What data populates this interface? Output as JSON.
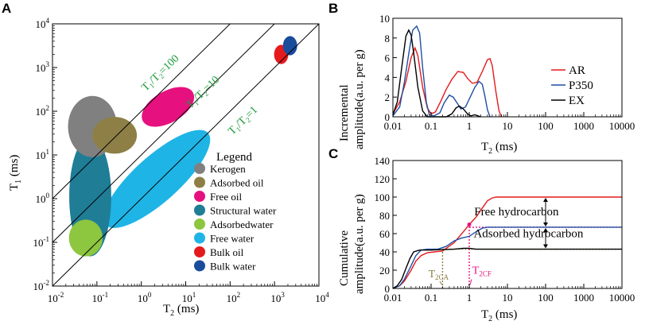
{
  "chart_data": [
    {
      "panel": "A",
      "type": "scatter",
      "xlabel_main": "T",
      "xlabel_sub": "2",
      "xlabel_unit": " (ms)",
      "ylabel_main": "T",
      "ylabel_sub": "1",
      "ylabel_unit": " (ms)",
      "xlim_log10": [
        -2,
        4
      ],
      "ylim_log10": [
        -2,
        4
      ],
      "x_ticks": [
        {
          "b": "10",
          "e": "-2",
          "p": -2
        },
        {
          "b": "10",
          "e": "-1",
          "p": -1
        },
        {
          "b": "10",
          "e": "0",
          "p": 0
        },
        {
          "b": "10",
          "e": "1",
          "p": 1
        },
        {
          "b": "10",
          "e": "2",
          "p": 2
        },
        {
          "b": "10",
          "e": "3",
          "p": 3
        },
        {
          "b": "10",
          "e": "4",
          "p": 4
        }
      ],
      "y_ticks": [
        {
          "b": "10",
          "e": "-2",
          "p": -2
        },
        {
          "b": "10",
          "e": "-1",
          "p": -1
        },
        {
          "b": "10",
          "e": "0",
          "p": 0
        },
        {
          "b": "10",
          "e": "1",
          "p": 1
        },
        {
          "b": "10",
          "e": "2",
          "p": 2
        },
        {
          "b": "10",
          "e": "3",
          "p": 3
        },
        {
          "b": "10",
          "e": "4",
          "p": 4
        }
      ],
      "ratio_lines": [
        {
          "ratio": 100,
          "label_a": "T",
          "label_s1": "1",
          "label_b": "/T",
          "label_s2": "2",
          "label_c": "=100",
          "lx": 0.1,
          "ly": 2.45
        },
        {
          "ratio": 10,
          "label_a": "T",
          "label_s1": "1",
          "label_b": "/T",
          "label_s2": "2",
          "label_c": "=10",
          "lx": 1.1,
          "ly": 2.05
        },
        {
          "ratio": 1,
          "label_a": "T",
          "label_s1": "1",
          "label_b": "/T",
          "label_s2": "2",
          "label_c": "=1",
          "lx": 2.05,
          "ly": 1.45
        }
      ],
      "regions": [
        {
          "name": "Free water",
          "color": "#1eb4e6",
          "cx": 0.35,
          "cy": 0.45,
          "rx": 1.55,
          "ry": 0.52,
          "rot": -42
        },
        {
          "name": "Structural water",
          "color": "#1f7d96",
          "cx": -1.15,
          "cy": 0.05,
          "rx": 1.35,
          "ry": 0.48,
          "rot": -90
        },
        {
          "name": "Adsorbedwater",
          "color": "#8dc63f",
          "cx": -1.25,
          "cy": -0.9,
          "rx": 0.38,
          "ry": 0.42,
          "rot": 0
        },
        {
          "name": "Kerogen",
          "color": "#808080",
          "cx": -1.1,
          "cy": 1.65,
          "rx": 0.55,
          "ry": 0.7,
          "rot": 0
        },
        {
          "name": "Adsorbed oil",
          "color": "#8d7f46",
          "cx": -0.6,
          "cy": 1.45,
          "rx": 0.5,
          "ry": 0.42,
          "rot": 0
        },
        {
          "name": "Free oil",
          "color": "#e6117e",
          "cx": 0.6,
          "cy": 2.1,
          "rx": 0.65,
          "ry": 0.36,
          "rot": -30
        },
        {
          "name": "Bulk oil",
          "color": "#e41a1c",
          "cx": 3.15,
          "cy": 3.3,
          "rx": 0.16,
          "ry": 0.22,
          "rot": 0
        },
        {
          "name": "Bulk water",
          "color": "#1a4c9c",
          "cx": 3.35,
          "cy": 3.5,
          "rx": 0.16,
          "ry": 0.22,
          "rot": 0
        }
      ],
      "legend_title": "Legend",
      "legend": [
        {
          "label": "Kerogen",
          "color": "#808080"
        },
        {
          "label": "Adsorbed oil",
          "color": "#8d7f46"
        },
        {
          "label": "Free oil",
          "color": "#e6117e"
        },
        {
          "label": "Structural water",
          "color": "#1f7d96"
        },
        {
          "label": "Adsorbedwater",
          "color": "#8dc63f"
        },
        {
          "label": "Free water",
          "color": "#1eb4e6"
        },
        {
          "label": "Bulk oil",
          "color": "#e41a1c"
        },
        {
          "label": "Bulk water",
          "color": "#1a4c9c"
        }
      ]
    },
    {
      "panel": "B",
      "type": "line",
      "ylabel_line1": "Incremental",
      "ylabel_line2": "amplitude(a.u. per g)",
      "xlabel_main": "T",
      "xlabel_sub": "2",
      "xlabel_unit": " (ms)",
      "xlim": [
        0.01,
        10000
      ],
      "ylim": [
        0,
        10
      ],
      "x_ticks": [
        {
          "label": "0.01",
          "v": 0.01
        },
        {
          "label": "0.1",
          "v": 0.1
        },
        {
          "label": "1",
          "v": 1
        },
        {
          "label": "10",
          "v": 10
        },
        {
          "label": "100",
          "v": 100
        },
        {
          "label": "1000",
          "v": 1000
        },
        {
          "label": "10000",
          "v": 10000
        }
      ],
      "y_ticks": [
        {
          "label": "0",
          "v": 0
        },
        {
          "label": "2",
          "v": 2
        },
        {
          "label": "4",
          "v": 4
        },
        {
          "label": "6",
          "v": 6
        },
        {
          "label": "8",
          "v": 8
        },
        {
          "label": "10",
          "v": 10
        }
      ],
      "series": [
        {
          "name": "AR",
          "color": "#e41a1c",
          "points": [
            [
              0.01,
              0.3
            ],
            [
              0.015,
              1.5
            ],
            [
              0.022,
              3.6
            ],
            [
              0.03,
              6.0
            ],
            [
              0.038,
              7.0
            ],
            [
              0.045,
              6.2
            ],
            [
              0.06,
              3.0
            ],
            [
              0.08,
              0.9
            ],
            [
              0.1,
              0.3
            ],
            [
              0.13,
              0.5
            ],
            [
              0.18,
              1.6
            ],
            [
              0.25,
              2.8
            ],
            [
              0.35,
              3.8
            ],
            [
              0.5,
              4.6
            ],
            [
              0.7,
              4.5
            ],
            [
              0.9,
              3.9
            ],
            [
              1.2,
              3.4
            ],
            [
              1.6,
              3.5
            ],
            [
              2.2,
              4.6
            ],
            [
              3.0,
              5.8
            ],
            [
              3.5,
              5.9
            ],
            [
              4.0,
              5.2
            ],
            [
              5.0,
              2.5
            ],
            [
              6.0,
              0.6
            ],
            [
              7.0,
              0
            ]
          ]
        },
        {
          "name": "P350",
          "color": "#1f4ea3",
          "points": [
            [
              0.01,
              0.1
            ],
            [
              0.015,
              1.0
            ],
            [
              0.02,
              3.5
            ],
            [
              0.027,
              6.8
            ],
            [
              0.033,
              8.8
            ],
            [
              0.042,
              9.2
            ],
            [
              0.05,
              8.5
            ],
            [
              0.06,
              5.0
            ],
            [
              0.075,
              1.5
            ],
            [
              0.09,
              0.2
            ],
            [
              0.12,
              0.1
            ],
            [
              0.17,
              0.4
            ],
            [
              0.22,
              1.4
            ],
            [
              0.3,
              2.2
            ],
            [
              0.38,
              2.0
            ],
            [
              0.5,
              1.3
            ],
            [
              0.6,
              0.8
            ],
            [
              0.8,
              1.0
            ],
            [
              1.0,
              1.8
            ],
            [
              1.4,
              3.0
            ],
            [
              1.8,
              3.6
            ],
            [
              2.2,
              3.3
            ],
            [
              2.6,
              2.0
            ],
            [
              3.0,
              0.7
            ],
            [
              3.5,
              0
            ]
          ]
        },
        {
          "name": "EX",
          "color": "#000000",
          "points": [
            [
              0.01,
              0.2
            ],
            [
              0.013,
              1.5
            ],
            [
              0.017,
              5.0
            ],
            [
              0.022,
              8.2
            ],
            [
              0.026,
              8.8
            ],
            [
              0.03,
              8.3
            ],
            [
              0.035,
              6.5
            ],
            [
              0.045,
              3.0
            ],
            [
              0.06,
              0.6
            ],
            [
              0.08,
              0
            ],
            [
              0.25,
              0
            ],
            [
              0.35,
              0.3
            ],
            [
              0.45,
              0.9
            ],
            [
              0.55,
              1.1
            ],
            [
              0.7,
              0.8
            ],
            [
              0.9,
              0.3
            ],
            [
              1.1,
              0.1
            ],
            [
              1.4,
              0.2
            ],
            [
              1.7,
              0.1
            ],
            [
              2.0,
              0
            ]
          ]
        }
      ]
    },
    {
      "panel": "C",
      "type": "line",
      "ylabel_line1": "Cumulative",
      "ylabel_line2": "amplitude(a.u. per g)",
      "xlabel_main": "T",
      "xlabel_sub": "2",
      "xlabel_unit": " (ms)",
      "xlim": [
        0.01,
        10000
      ],
      "ylim": [
        0,
        140
      ],
      "x_ticks": [
        {
          "label": "0.01",
          "v": 0.01
        },
        {
          "label": "0.1",
          "v": 0.1
        },
        {
          "label": "1",
          "v": 1
        },
        {
          "label": "10",
          "v": 10
        },
        {
          "label": "100",
          "v": 100
        },
        {
          "label": "1000",
          "v": 1000
        },
        {
          "label": "10000",
          "v": 10000
        }
      ],
      "y_ticks": [
        {
          "label": "0",
          "v": 0
        },
        {
          "label": "20",
          "v": 20
        },
        {
          "label": "40",
          "v": 40
        },
        {
          "label": "60",
          "v": 60
        },
        {
          "label": "80",
          "v": 80
        },
        {
          "label": "100",
          "v": 100
        },
        {
          "label": "120",
          "v": 120
        },
        {
          "label": "140",
          "v": 140
        }
      ],
      "series": [
        {
          "name": "AR",
          "color": "#e41a1c",
          "points": [
            [
              0.01,
              0
            ],
            [
              0.015,
              3
            ],
            [
              0.02,
              8
            ],
            [
              0.03,
              20
            ],
            [
              0.04,
              30
            ],
            [
              0.055,
              36
            ],
            [
              0.08,
              39
            ],
            [
              0.12,
              40
            ],
            [
              0.2,
              41
            ],
            [
              0.4,
              50
            ],
            [
              0.7,
              62
            ],
            [
              1.0,
              70
            ],
            [
              1.5,
              78
            ],
            [
              2.2,
              88
            ],
            [
              3.0,
              96
            ],
            [
              4.0,
              99
            ],
            [
              5.0,
              100
            ],
            [
              10000,
              100
            ]
          ]
        },
        {
          "name": "P350",
          "color": "#1f4ea3",
          "points": [
            [
              0.01,
              0
            ],
            [
              0.015,
              3
            ],
            [
              0.02,
              10
            ],
            [
              0.03,
              25
            ],
            [
              0.04,
              36
            ],
            [
              0.055,
              42
            ],
            [
              0.08,
              43
            ],
            [
              0.15,
              43
            ],
            [
              0.25,
              46
            ],
            [
              0.4,
              52
            ],
            [
              0.6,
              55
            ],
            [
              1.0,
              57
            ],
            [
              1.5,
              62
            ],
            [
              2.2,
              66
            ],
            [
              3.0,
              67
            ],
            [
              10000,
              67
            ]
          ]
        },
        {
          "name": "EX",
          "color": "#000000",
          "points": [
            [
              0.01,
              0
            ],
            [
              0.013,
              3
            ],
            [
              0.017,
              10
            ],
            [
              0.022,
              22
            ],
            [
              0.028,
              33
            ],
            [
              0.035,
              40
            ],
            [
              0.05,
              42
            ],
            [
              0.1,
              42
            ],
            [
              0.4,
              43
            ],
            [
              0.7,
              44
            ],
            [
              1.0,
              44
            ],
            [
              1.5,
              43
            ],
            [
              10000,
              43
            ]
          ]
        }
      ],
      "hlines": [
        {
          "y": 67,
          "x0": 1,
          "x1": 10000,
          "color": "#e6117e"
        },
        {
          "y": 43,
          "x0": 0.2,
          "x1": 10000,
          "color": "#8d7f46"
        }
      ],
      "vlines": [
        {
          "x": 0.2,
          "y0": 0,
          "y1": 42,
          "color": "#8d7f46"
        },
        {
          "x": 1.0,
          "y0": 0,
          "y1": 70,
          "color": "#e6117e"
        }
      ],
      "arrows_x": 100,
      "arrows": [
        {
          "y0": 67,
          "y1": 100
        },
        {
          "y0": 43,
          "y1": 67
        }
      ],
      "annotations": [
        {
          "text": "Free hydrocarbon",
          "color": "#e6117e",
          "x": 1.35,
          "y": 80
        },
        {
          "text": "Adsorbed hydrocarbon",
          "color": "#8d7f46",
          "x": 1.3,
          "y": 56
        }
      ],
      "markers": [
        {
          "main": "T",
          "sub": "2CA",
          "color": "#8d7f46",
          "x": 0.085,
          "y": 12
        },
        {
          "main": "T",
          "sub": "2CF",
          "color": "#e6117e",
          "x": 1.2,
          "y": 16
        }
      ]
    }
  ],
  "panel_labels": [
    "A",
    "B",
    "C"
  ]
}
